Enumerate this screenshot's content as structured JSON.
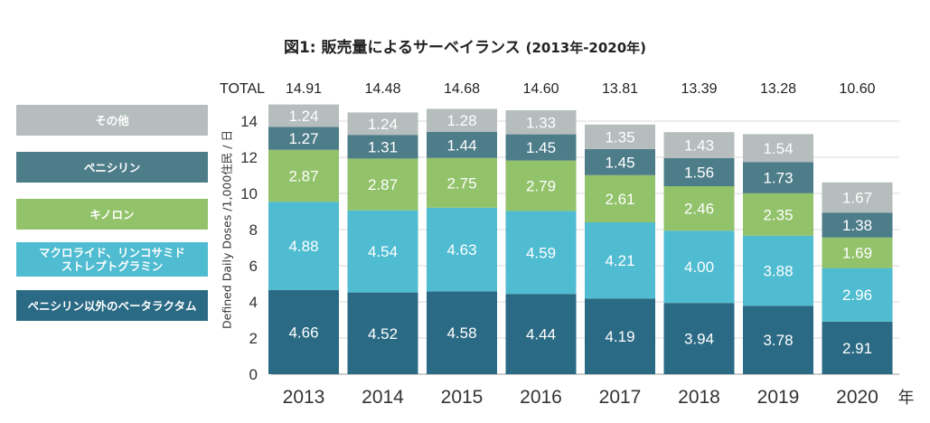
{
  "title": "図1: 販売量によるサーベイランス",
  "subtitle": "(2013年-2020年)",
  "legend": [
    {
      "label": "その他",
      "color": "#b5bdbd"
    },
    {
      "label": "ペニシリン",
      "color": "#4e7d8a"
    },
    {
      "label": "キノロン",
      "color": "#92c26a"
    },
    {
      "label": "マクロライド、リンコサミド\nストレプトグラミン",
      "color": "#4fbcd1"
    },
    {
      "label": "ペニシリン以外のベータラクタム",
      "color": "#2b6a84"
    }
  ],
  "chart_data": {
    "type": "bar",
    "stacked": true,
    "categories": [
      "2013",
      "2014",
      "2015",
      "2016",
      "2017",
      "2018",
      "2019",
      "2020"
    ],
    "x_unit": "年",
    "ylabel": "Defined Daily Doses /1,000住民 / 日",
    "ylim": [
      0,
      15
    ],
    "yticks": [
      0,
      2,
      4,
      6,
      8,
      10,
      12,
      14
    ],
    "grid": true,
    "total_label": "TOTAL",
    "totals": [
      "14.91",
      "14.48",
      "14.68",
      "14.60",
      "13.81",
      "13.39",
      "13.28",
      "10.60"
    ],
    "series": [
      {
        "name": "ペニシリン以外のベータラクタム",
        "color": "#2b6a84",
        "values": [
          4.66,
          4.52,
          4.58,
          4.44,
          4.19,
          3.94,
          3.78,
          2.91
        ]
      },
      {
        "name": "マクロライド、リンコサミドストレプトグラミン",
        "color": "#4fbcd1",
        "values": [
          4.88,
          4.54,
          4.63,
          4.59,
          4.21,
          4.0,
          3.88,
          2.96
        ]
      },
      {
        "name": "キノロン",
        "color": "#92c26a",
        "values": [
          2.87,
          2.87,
          2.75,
          2.79,
          2.61,
          2.46,
          2.35,
          1.69
        ]
      },
      {
        "name": "ペニシリン",
        "color": "#4e7d8a",
        "values": [
          1.27,
          1.31,
          1.44,
          1.45,
          1.45,
          1.56,
          1.73,
          1.38
        ]
      },
      {
        "name": "その他",
        "color": "#b5bdbd",
        "values": [
          1.24,
          1.24,
          1.28,
          1.33,
          1.35,
          1.43,
          1.54,
          1.67
        ]
      }
    ]
  }
}
